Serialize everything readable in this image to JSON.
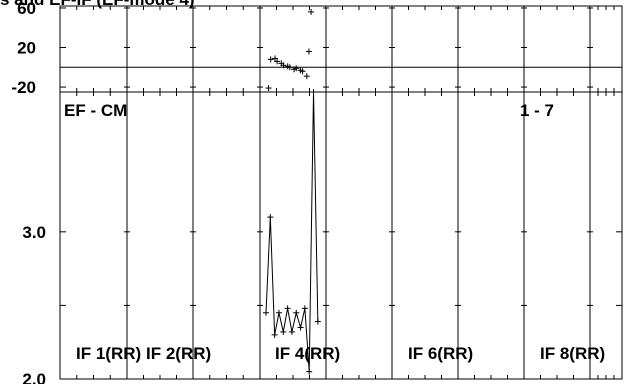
{
  "header": {
    "title": "s and EF-IF (EF-mode 4)"
  },
  "top_panel": {
    "ytick_labels": [
      "60",
      "20",
      "-20"
    ],
    "ylim": [
      -25,
      62
    ],
    "zero_line": 0
  },
  "main_panel": {
    "label_left": "EF - CM",
    "label_right": "1 - 7",
    "ytick_labels": [
      "3.0",
      "2.0"
    ],
    "ylim": [
      2.0,
      3.95
    ],
    "if_labels": [
      "IF 1(RR)",
      "IF 2(RR)",
      "IF 4(RR)",
      "IF 6(RR)",
      "IF 8(RR)"
    ]
  },
  "chart_data": [
    {
      "type": "scatter",
      "panel": "top",
      "ylim": [
        -25,
        62
      ],
      "ticks": [
        60,
        20,
        -20
      ],
      "x": [
        0.05,
        0.23,
        0.59,
        0.77,
        1.13,
        1.31,
        1.67,
        1.85,
        2.21,
        2.39,
        2.75,
        2.93,
        3.29,
        3.47,
        3.65
      ],
      "y": [
        -21,
        8,
        9,
        6,
        4,
        2,
        1,
        0,
        -2,
        -1,
        -3,
        -4,
        -9,
        16,
        56
      ]
    },
    {
      "type": "line",
      "panel": "main",
      "ylim": [
        2.0,
        3.95
      ],
      "ticks": [
        3.0,
        2.0
      ],
      "x": [
        0.0,
        0.36,
        0.72,
        1.08,
        1.44,
        1.8,
        2.16,
        2.52,
        2.88,
        3.24,
        3.6,
        3.96,
        4.32
      ],
      "y": [
        2.45,
        3.1,
        2.3,
        2.45,
        2.32,
        2.48,
        2.32,
        2.45,
        2.35,
        2.48,
        2.05,
        3.95,
        2.39
      ]
    }
  ]
}
